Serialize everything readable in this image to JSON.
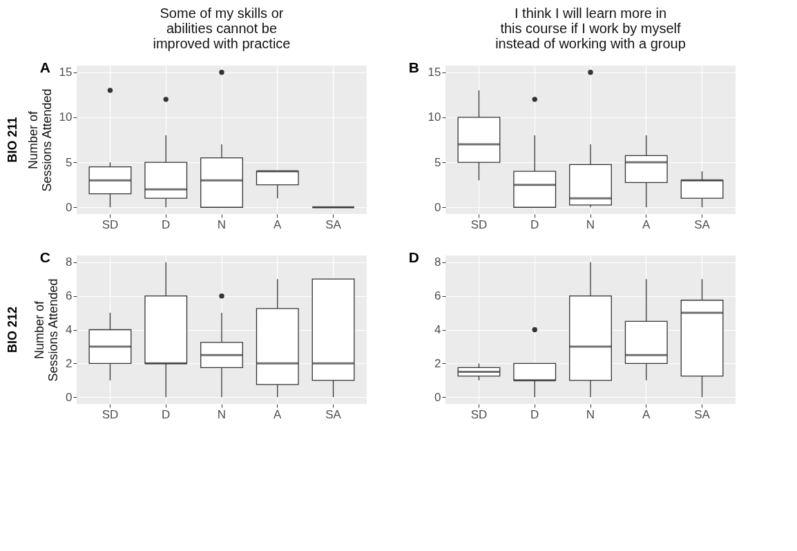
{
  "chart_data": [
    {
      "type": "box",
      "title": "Some of my skills or\nabilities cannot be\nimproved with practice",
      "subtitle": "A",
      "ylabel": "Number of\nSessions Attended",
      "annotations": [
        "BIO 211"
      ],
      "categories": [
        "SD",
        "D",
        "N",
        "A",
        "SA"
      ],
      "ylim": [
        -0.75,
        15.75
      ],
      "yticks": [
        0,
        5,
        10,
        15
      ],
      "grid": true,
      "boxes": [
        {
          "low": 0,
          "q1": 1.5,
          "median": 3,
          "q3": 4.5,
          "high": 5,
          "outliers": [
            13
          ]
        },
        {
          "low": 0,
          "q1": 1,
          "median": 2,
          "q3": 5,
          "high": 8,
          "outliers": [
            12
          ]
        },
        {
          "low": 0,
          "q1": 0,
          "median": 3,
          "q3": 5.5,
          "high": 7,
          "outliers": [
            15
          ]
        },
        {
          "low": 1,
          "q1": 2.5,
          "median": 4,
          "q3": 4,
          "high": 4
        },
        {
          "low": 0,
          "q1": 0,
          "median": 0,
          "q3": 0,
          "high": 0
        }
      ]
    },
    {
      "type": "box",
      "title": "I think I will learn more in\nthis course if I work by myself\ninstead of working with a group",
      "subtitle": "B",
      "categories": [
        "SD",
        "D",
        "N",
        "A",
        "SA"
      ],
      "ylim": [
        -0.75,
        15.75
      ],
      "yticks": [
        0,
        5,
        10,
        15
      ],
      "grid": true,
      "boxes": [
        {
          "low": 3,
          "q1": 5,
          "median": 7,
          "q3": 10,
          "high": 13
        },
        {
          "low": 0,
          "q1": 0,
          "median": 2.5,
          "q3": 4,
          "high": 8,
          "outliers": [
            12
          ]
        },
        {
          "low": 0,
          "q1": 0.25,
          "median": 1,
          "q3": 4.75,
          "high": 7,
          "outliers": [
            15
          ]
        },
        {
          "low": 0,
          "q1": 2.75,
          "median": 5,
          "q3": 5.75,
          "high": 8
        },
        {
          "low": 0,
          "q1": 1,
          "median": 3,
          "q3": 3,
          "high": 4
        }
      ]
    },
    {
      "type": "box",
      "subtitle": "C",
      "ylabel": "Number of\nSessions Attended",
      "annotations": [
        "BIO 212"
      ],
      "categories": [
        "SD",
        "D",
        "N",
        "A",
        "SA"
      ],
      "ylim": [
        -0.4,
        8.4
      ],
      "yticks": [
        0,
        2,
        4,
        6,
        8
      ],
      "grid": true,
      "boxes": [
        {
          "low": 1,
          "q1": 2,
          "median": 3,
          "q3": 4,
          "high": 5
        },
        {
          "low": 0,
          "q1": 2,
          "median": 2,
          "q3": 6,
          "high": 8
        },
        {
          "low": 0,
          "q1": 1.75,
          "median": 2.5,
          "q3": 3.25,
          "high": 5,
          "outliers": [
            6
          ]
        },
        {
          "low": 0,
          "q1": 0.75,
          "median": 2,
          "q3": 5.25,
          "high": 7
        },
        {
          "low": 0,
          "q1": 1,
          "median": 2,
          "q3": 7,
          "high": 7
        }
      ]
    },
    {
      "type": "box",
      "subtitle": "D",
      "categories": [
        "SD",
        "D",
        "N",
        "A",
        "SA"
      ],
      "ylim": [
        -0.4,
        8.4
      ],
      "yticks": [
        0,
        2,
        4,
        6,
        8
      ],
      "grid": true,
      "boxes": [
        {
          "low": 1,
          "q1": 1.25,
          "median": 1.5,
          "q3": 1.75,
          "high": 2
        },
        {
          "low": 0,
          "q1": 1,
          "median": 1,
          "q3": 2,
          "high": 2,
          "outliers": [
            4
          ]
        },
        {
          "low": 0,
          "q1": 1,
          "median": 3,
          "q3": 6,
          "high": 8
        },
        {
          "low": 1,
          "q1": 2,
          "median": 2.5,
          "q3": 4.5,
          "high": 7
        },
        {
          "low": 0,
          "q1": 1.25,
          "median": 5,
          "q3": 5.75,
          "high": 7
        }
      ]
    }
  ]
}
